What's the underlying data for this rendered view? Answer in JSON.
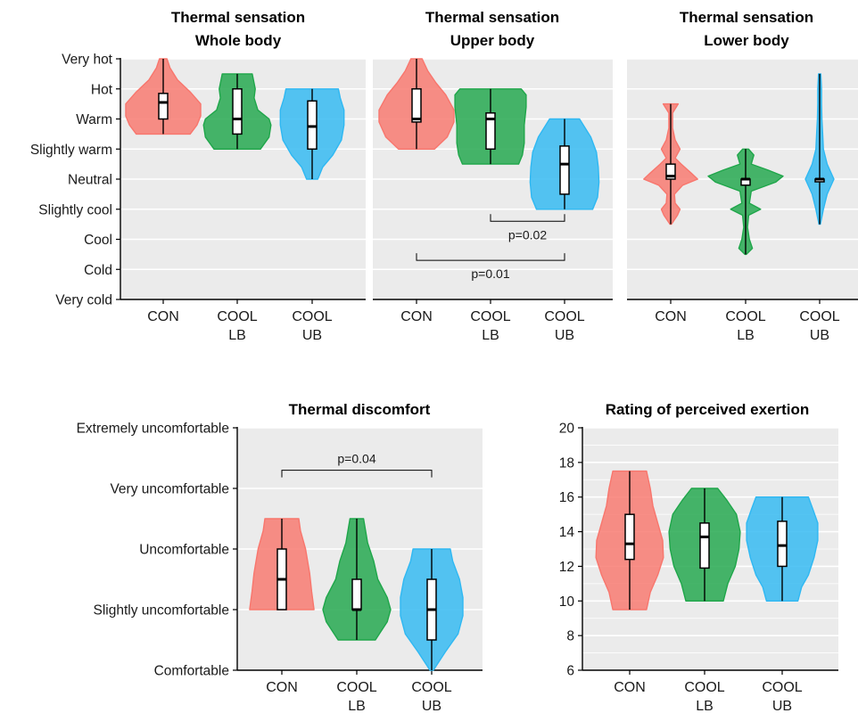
{
  "colors": {
    "CON": "#f8766d",
    "COOL LB": "#1fa64a",
    "COOL UB": "#2fb8f2",
    "panel_bg": "#ebebeb",
    "grid": "#ffffff"
  },
  "chart_data": [
    {
      "type": "violin",
      "title": [
        "Thermal sensation",
        "Whole body"
      ],
      "categories": [
        [
          "CON"
        ],
        [
          "COOL",
          "LB"
        ],
        [
          "COOL",
          "UB"
        ]
      ],
      "yticks": [
        "Very cold",
        "Cold",
        "Cool",
        "Slightly cool",
        "Neutral",
        "Slightly warm",
        "Warm",
        "Hot",
        "Very hot"
      ],
      "ylim": [
        0,
        8
      ],
      "series": [
        {
          "group": "CON",
          "min": 5.5,
          "q1": 6.0,
          "median": 6.55,
          "q3": 6.85,
          "max": 8.0,
          "density": [
            [
              5.5,
              0.72
            ],
            [
              5.8,
              0.9
            ],
            [
              6.1,
              1.0
            ],
            [
              6.5,
              1.0
            ],
            [
              6.9,
              0.72
            ],
            [
              7.3,
              0.38
            ],
            [
              7.7,
              0.18
            ],
            [
              8.0,
              0.1
            ]
          ]
        },
        {
          "group": "COOL LB",
          "min": 5.0,
          "q1": 5.5,
          "median": 6.0,
          "q3": 7.0,
          "max": 7.5,
          "density": [
            [
              5.0,
              0.62
            ],
            [
              5.4,
              0.85
            ],
            [
              5.8,
              0.9
            ],
            [
              6.0,
              0.85
            ],
            [
              6.3,
              0.55
            ],
            [
              6.7,
              0.45
            ],
            [
              7.0,
              0.48
            ],
            [
              7.5,
              0.4
            ]
          ]
        },
        {
          "group": "COOL UB",
          "min": 4.0,
          "q1": 5.0,
          "median": 5.75,
          "q3": 6.6,
          "max": 7.0,
          "density": [
            [
              4.0,
              0.15
            ],
            [
              4.4,
              0.28
            ],
            [
              4.8,
              0.55
            ],
            [
              5.3,
              0.78
            ],
            [
              5.8,
              0.85
            ],
            [
              6.3,
              0.85
            ],
            [
              6.7,
              0.75
            ],
            [
              7.0,
              0.7
            ]
          ]
        }
      ]
    },
    {
      "type": "violin",
      "title": [
        "Thermal sensation",
        "Upper body"
      ],
      "categories": [
        [
          "CON"
        ],
        [
          "COOL",
          "LB"
        ],
        [
          "COOL",
          "UB"
        ]
      ],
      "ylim": [
        0,
        8
      ],
      "series": [
        {
          "group": "CON",
          "min": 5.0,
          "q1": 5.9,
          "median": 6.0,
          "q3": 7.0,
          "max": 8.0,
          "density": [
            [
              5.0,
              0.48
            ],
            [
              5.4,
              0.82
            ],
            [
              5.9,
              1.0
            ],
            [
              6.3,
              1.0
            ],
            [
              6.8,
              0.78
            ],
            [
              7.2,
              0.52
            ],
            [
              7.6,
              0.3
            ],
            [
              8.0,
              0.15
            ]
          ]
        },
        {
          "group": "COOL LB",
          "min": 4.5,
          "q1": 5.0,
          "median": 6.0,
          "q3": 6.2,
          "max": 7.0,
          "density": [
            [
              4.5,
              0.75
            ],
            [
              4.8,
              0.85
            ],
            [
              5.2,
              0.9
            ],
            [
              5.8,
              0.9
            ],
            [
              6.4,
              0.95
            ],
            [
              6.8,
              0.95
            ],
            [
              7.0,
              0.82
            ]
          ]
        },
        {
          "group": "COOL UB",
          "min": 3.0,
          "q1": 3.5,
          "median": 4.5,
          "q3": 5.1,
          "max": 6.0,
          "density": [
            [
              3.0,
              0.75
            ],
            [
              3.4,
              0.88
            ],
            [
              3.9,
              0.92
            ],
            [
              4.4,
              0.9
            ],
            [
              4.9,
              0.85
            ],
            [
              5.4,
              0.7
            ],
            [
              5.8,
              0.5
            ],
            [
              6.0,
              0.4
            ]
          ]
        }
      ],
      "annotations": [
        {
          "text": "p=0.02",
          "from": "COOL LB",
          "to": "COOL UB",
          "y": 2.6
        },
        {
          "text": "p=0.01",
          "from": "CON",
          "to": "COOL UB",
          "y": 1.3
        }
      ]
    },
    {
      "type": "violin",
      "title": [
        "Thermal sensation",
        "Lower body"
      ],
      "categories": [
        [
          "CON"
        ],
        [
          "COOL",
          "LB"
        ],
        [
          "COOL",
          "UB"
        ]
      ],
      "ylim": [
        0,
        8
      ],
      "series": [
        {
          "group": "CON",
          "min": 2.5,
          "q1": 4.0,
          "median": 4.1,
          "q3": 4.5,
          "max": 6.5,
          "density": [
            [
              2.5,
              0.02
            ],
            [
              2.8,
              0.18
            ],
            [
              3.0,
              0.25
            ],
            [
              3.2,
              0.12
            ],
            [
              3.5,
              0.1
            ],
            [
              3.8,
              0.32
            ],
            [
              4.0,
              0.72
            ],
            [
              4.2,
              0.55
            ],
            [
              4.5,
              0.28
            ],
            [
              4.7,
              0.12
            ],
            [
              5.0,
              0.25
            ],
            [
              5.3,
              0.12
            ],
            [
              5.7,
              0.05
            ],
            [
              6.2,
              0.05
            ],
            [
              6.5,
              0.2
            ]
          ]
        },
        {
          "group": "COOL LB",
          "min": 1.5,
          "q1": 3.8,
          "median": 4.0,
          "q3": 4.0,
          "max": 5.0,
          "density": [
            [
              1.5,
              0.02
            ],
            [
              1.7,
              0.18
            ],
            [
              2.0,
              0.1
            ],
            [
              2.4,
              0.05
            ],
            [
              2.8,
              0.08
            ],
            [
              3.0,
              0.4
            ],
            [
              3.2,
              0.1
            ],
            [
              3.6,
              0.15
            ],
            [
              3.9,
              0.8
            ],
            [
              4.1,
              1.0
            ],
            [
              4.3,
              0.6
            ],
            [
              4.5,
              0.15
            ],
            [
              4.8,
              0.22
            ],
            [
              5.0,
              0.08
            ]
          ]
        },
        {
          "group": "COOL UB",
          "min": 2.5,
          "q1": 4.0,
          "median": 4.0,
          "q3": 4.0,
          "max": 7.5,
          "density": [
            [
              2.5,
              0.02
            ],
            [
              3.0,
              0.1
            ],
            [
              3.5,
              0.2
            ],
            [
              4.0,
              0.38
            ],
            [
              4.5,
              0.2
            ],
            [
              5.0,
              0.1
            ],
            [
              5.5,
              0.08
            ],
            [
              6.0,
              0.06
            ],
            [
              6.5,
              0.05
            ],
            [
              7.0,
              0.05
            ],
            [
              7.5,
              0.03
            ]
          ]
        }
      ]
    },
    {
      "type": "violin",
      "title": [
        "Thermal discomfort"
      ],
      "categories": [
        [
          "CON"
        ],
        [
          "COOL",
          "LB"
        ],
        [
          "COOL",
          "UB"
        ]
      ],
      "yticks": [
        "Comfortable",
        "Slightly uncomfortable",
        "Uncomfortable",
        "Very uncomfortable",
        "Extremely uncomfortable"
      ],
      "ylim": [
        0,
        4
      ],
      "series": [
        {
          "group": "CON",
          "min": 1.0,
          "q1": 1.0,
          "median": 1.5,
          "q3": 2.0,
          "max": 2.5,
          "density": [
            [
              1.0,
              0.95
            ],
            [
              1.3,
              0.88
            ],
            [
              1.6,
              0.82
            ],
            [
              2.0,
              0.7
            ],
            [
              2.3,
              0.55
            ],
            [
              2.5,
              0.5
            ]
          ]
        },
        {
          "group": "COOL LB",
          "min": 0.5,
          "q1": 1.0,
          "median": 1.0,
          "q3": 1.5,
          "max": 2.5,
          "density": [
            [
              0.5,
              0.55
            ],
            [
              0.8,
              0.9
            ],
            [
              1.0,
              1.0
            ],
            [
              1.2,
              0.9
            ],
            [
              1.5,
              0.62
            ],
            [
              1.8,
              0.5
            ],
            [
              2.1,
              0.32
            ],
            [
              2.5,
              0.2
            ]
          ]
        },
        {
          "group": "COOL UB",
          "min": 0.0,
          "q1": 0.5,
          "median": 1.0,
          "q3": 1.5,
          "max": 2.0,
          "density": [
            [
              0.0,
              0.05
            ],
            [
              0.3,
              0.4
            ],
            [
              0.6,
              0.78
            ],
            [
              0.9,
              0.92
            ],
            [
              1.2,
              0.92
            ],
            [
              1.5,
              0.82
            ],
            [
              1.8,
              0.62
            ],
            [
              2.0,
              0.55
            ]
          ]
        }
      ],
      "annotations": [
        {
          "text": "p=0.04",
          "from": "CON",
          "to": "COOL UB",
          "y": 3.3
        }
      ]
    },
    {
      "type": "violin",
      "title": [
        "Rating of perceived exertion"
      ],
      "categories": [
        [
          "CON"
        ],
        [
          "COOL",
          "LB"
        ],
        [
          "COOL",
          "UB"
        ]
      ],
      "yticks": [
        "6",
        "8",
        "10",
        "12",
        "14",
        "16",
        "18",
        "20"
      ],
      "ylim": [
        6,
        20
      ],
      "series": [
        {
          "group": "CON",
          "min": 9.5,
          "q1": 12.4,
          "median": 13.3,
          "q3": 15.0,
          "max": 17.5,
          "density": [
            [
              9.5,
              0.45
            ],
            [
              10.5,
              0.55
            ],
            [
              11.5,
              0.75
            ],
            [
              12.5,
              0.9
            ],
            [
              13.5,
              0.88
            ],
            [
              14.5,
              0.75
            ],
            [
              15.5,
              0.62
            ],
            [
              16.5,
              0.55
            ],
            [
              17.5,
              0.45
            ]
          ]
        },
        {
          "group": "COOL LB",
          "min": 10.0,
          "q1": 11.9,
          "median": 13.7,
          "q3": 14.5,
          "max": 16.5,
          "density": [
            [
              10.0,
              0.5
            ],
            [
              11.0,
              0.62
            ],
            [
              12.0,
              0.82
            ],
            [
              13.0,
              0.92
            ],
            [
              14.0,
              0.95
            ],
            [
              15.0,
              0.85
            ],
            [
              15.8,
              0.6
            ],
            [
              16.5,
              0.35
            ]
          ]
        },
        {
          "group": "COOL UB",
          "min": 10.0,
          "q1": 12.0,
          "median": 13.2,
          "q3": 14.6,
          "max": 16.0,
          "density": [
            [
              10.0,
              0.42
            ],
            [
              10.8,
              0.52
            ],
            [
              11.5,
              0.7
            ],
            [
              12.5,
              0.85
            ],
            [
              13.5,
              0.95
            ],
            [
              14.5,
              0.95
            ],
            [
              15.3,
              0.82
            ],
            [
              16.0,
              0.7
            ]
          ]
        }
      ]
    }
  ]
}
